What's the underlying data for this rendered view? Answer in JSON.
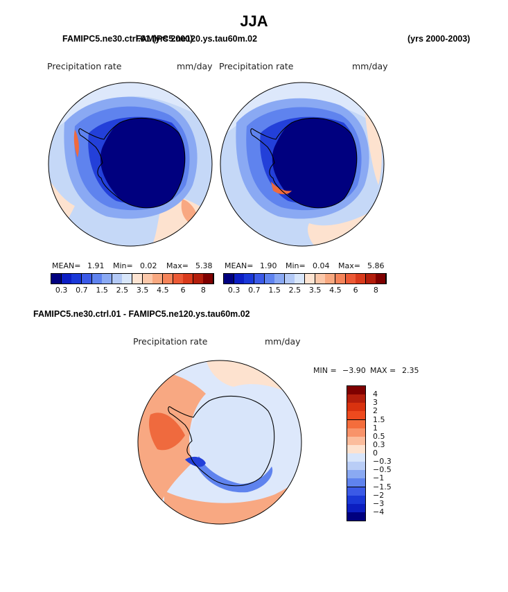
{
  "page": {
    "season": "JJA",
    "case_overlap_title": "FAMIPC5.ne30.ctrl.01 (yrs 2000)",
    "case2_title": "FAMIPC5.ne120.ys.tau60m.02",
    "years_right": "(yrs 2000-2003)",
    "diff_title": "FAMIPC5.ne30.ctrl.01 - FAMIPC5.ne120.ys.tau60m.02"
  },
  "panels": [
    {
      "variable": "Precipitation rate",
      "units": "mm/day",
      "mean_label": "MEAN=",
      "mean": "1.91",
      "min_label": "Min=",
      "min": "0.02",
      "max_label": "Max=",
      "max": "5.38"
    },
    {
      "variable": "Precipitation rate",
      "units": "mm/day",
      "mean_label": "MEAN=",
      "mean": "1.90",
      "min_label": "Min=",
      "min": "0.04",
      "max_label": "Max=",
      "max": "5.86"
    }
  ],
  "colorbar": {
    "labels": [
      "0.3",
      "0.7",
      "1.5",
      "2.5",
      "3.5",
      "4.5",
      "6",
      "8"
    ],
    "colors": [
      "#00007f",
      "#0c1ec4",
      "#1a38d8",
      "#3b5ae8",
      "#5f83ef",
      "#8aa9f3",
      "#b3c9f6",
      "#d8e6fa",
      "#fde4d2",
      "#fbc8aa",
      "#f8a880",
      "#f5845a",
      "#ec5a36",
      "#d93a1c",
      "#b41e0c",
      "#7f0000"
    ]
  },
  "difference": {
    "variable": "Precipitation rate",
    "units": "mm/day",
    "min_label": "MIN =",
    "min": "−3.90",
    "max_label": "MAX =",
    "max": "2.35",
    "legend_labels": [
      "4",
      "3",
      "2",
      "1.5",
      "1",
      "0.5",
      "0.3",
      "0",
      "−0.3",
      "−0.5",
      "−1",
      "−1.5",
      "−2",
      "−3",
      "−4"
    ],
    "legend_colors": [
      "#7f0000",
      "#b41e0c",
      "#d9320f",
      "#ee4a1e",
      "#f46d3c",
      "#f8936a",
      "#fbbc9c",
      "#fde2cf",
      "#d8e5fa",
      "#b9cdf6",
      "#8aa9f2",
      "#5f83ee",
      "#3b5ae6",
      "#1a38d6",
      "#0c1ec0",
      "#00007f"
    ]
  },
  "map_colors": {
    "ocean_mid": "#c5d8f7",
    "ocean_light": "#dde8fb",
    "warm_light": "#fde2cf",
    "warm_mid": "#f8a882",
    "warm_strong": "#ef6a3e",
    "cold_mid": "#5f83ee",
    "cold_strong": "#2340d9",
    "cold_deep": "#0a1a9a",
    "cold_core": "#00007f"
  }
}
